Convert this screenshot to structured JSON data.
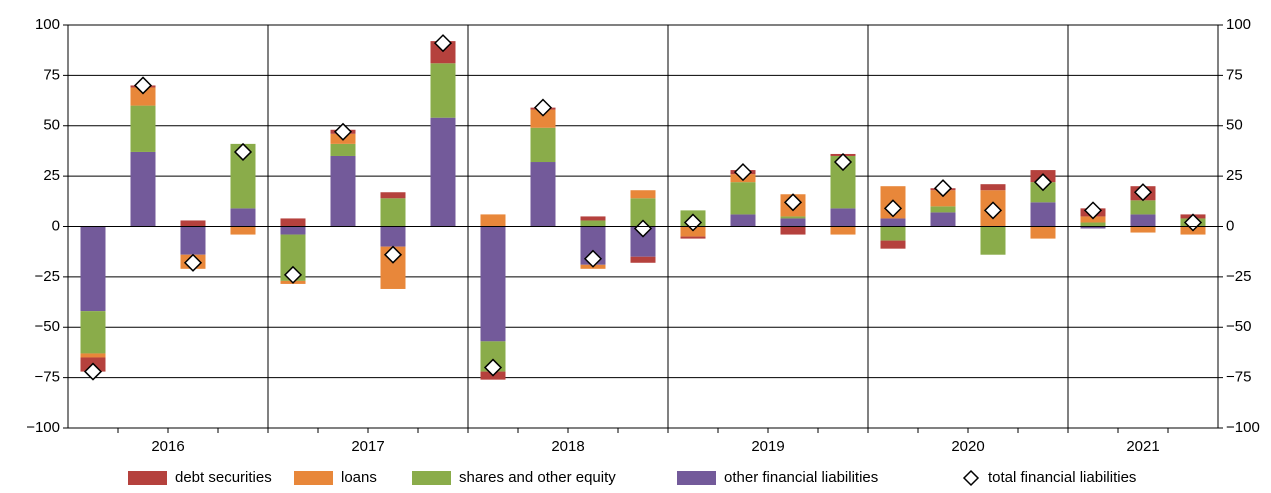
{
  "chart_data": {
    "type": "bar",
    "stacked": true,
    "categories": [
      "2016",
      null,
      null,
      null,
      "2017",
      null,
      null,
      null,
      "2018",
      null,
      null,
      null,
      "2019",
      null,
      null,
      null,
      "2020",
      null,
      null,
      null,
      "2021",
      null,
      null
    ],
    "series": [
      {
        "name": "debt securities",
        "color": "#b5413d",
        "values": [
          -7,
          1,
          3,
          0,
          4,
          2,
          3,
          11,
          -4,
          1,
          2,
          -3,
          -1,
          2,
          -4,
          1,
          -4,
          1,
          3,
          6,
          4,
          7,
          2
        ]
      },
      {
        "name": "loans",
        "color": "#e8873a",
        "values": [
          -2,
          9,
          -7,
          -4,
          -1.5,
          5,
          -21,
          0,
          6,
          9,
          -2,
          4,
          -5,
          4,
          11,
          -4,
          16,
          8,
          18,
          -6,
          3,
          -3,
          -4
        ]
      },
      {
        "name": "shares and other equity",
        "color": "#8aac4a",
        "values": [
          -21,
          23,
          0,
          32,
          -23,
          6,
          14,
          27,
          -15,
          17,
          3,
          14,
          8,
          16,
          1,
          26,
          -7,
          3,
          -14,
          10,
          2,
          7,
          4
        ]
      },
      {
        "name": "other financial liabilities",
        "color": "#735a9a",
        "values": [
          -42,
          37,
          -14,
          9,
          -4,
          35,
          -10,
          54,
          -57,
          32,
          -19,
          -15,
          0,
          6,
          4,
          9,
          4,
          7,
          0,
          12,
          -1,
          6,
          0
        ]
      },
      {
        "name": "total financial liabilities",
        "marker": "diamond",
        "color": "#ffffff",
        "values": [
          -72,
          70,
          -18,
          37,
          -24,
          47,
          -14,
          91,
          -70,
          59,
          -16,
          -1,
          2,
          27,
          12,
          32,
          9,
          19,
          8,
          22,
          8,
          17,
          2
        ]
      }
    ],
    "ylim": [
      -100,
      100
    ],
    "yticks": [
      {
        "value": -100,
        "label": "−100"
      },
      {
        "value": -75,
        "label": "−75"
      },
      {
        "value": -50,
        "label": "−50"
      },
      {
        "value": -25,
        "label": "−25"
      },
      0,
      25,
      50,
      75,
      100
    ],
    "y2lim": [
      -100,
      100
    ],
    "y2ticks": [
      {
        "value": -100,
        "label": "−100"
      },
      {
        "value": -75,
        "label": "−75"
      },
      {
        "value": -50,
        "label": "−50"
      },
      {
        "value": -25,
        "label": "−25"
      },
      0,
      25,
      50,
      75,
      100
    ],
    "grid": true,
    "legend": "bottom"
  }
}
